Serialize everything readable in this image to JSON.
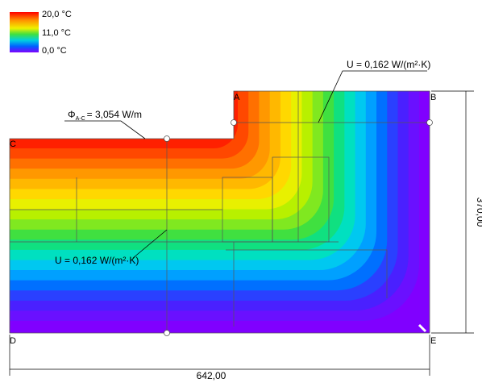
{
  "legend": {
    "labels": [
      "20,0 °C",
      "11,0 °C",
      "0,0 °C"
    ]
  },
  "annotations": {
    "u_top": "U = 0,162 W/(m²·K)",
    "u_bottom": "U = 0,162 W/(m²·K)",
    "flux_symbol": "Φ",
    "flux_subscript": "A-C",
    "flux_value": "= 3,054 W/m"
  },
  "points": [
    "A",
    "B",
    "C",
    "D",
    "E"
  ],
  "dimensions": {
    "height": "370,00",
    "width": "642,00"
  }
}
